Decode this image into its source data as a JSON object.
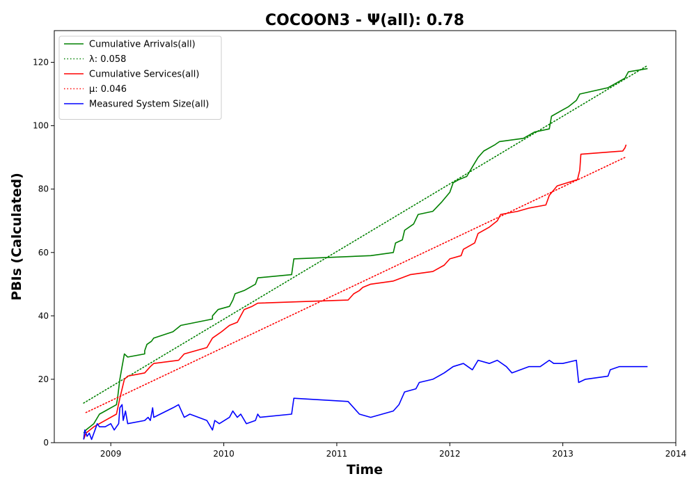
{
  "chart_data": {
    "type": "line",
    "title": "COCOON3 -  Ψ(all): 0.78",
    "xlabel": "Time",
    "ylabel": "PBIs (Calculated)",
    "xlim": [
      2008.5,
      2014.0
    ],
    "ylim": [
      0,
      130
    ],
    "x_ticks": [
      2009,
      2010,
      2011,
      2012,
      2013,
      2014
    ],
    "y_ticks": [
      0,
      20,
      40,
      60,
      80,
      100,
      120
    ],
    "legend_position": "top-left",
    "grid": false,
    "series": [
      {
        "name": "Cumulative Arrivals(all)",
        "color": "#008000",
        "style": "solid",
        "points": [
          [
            2008.76,
            3
          ],
          [
            2008.78,
            4
          ],
          [
            2008.85,
            6
          ],
          [
            2008.9,
            9
          ],
          [
            2008.95,
            10
          ],
          [
            2009.0,
            11
          ],
          [
            2009.05,
            12
          ],
          [
            2009.06,
            14
          ],
          [
            2009.08,
            20
          ],
          [
            2009.1,
            24
          ],
          [
            2009.12,
            28
          ],
          [
            2009.15,
            27
          ],
          [
            2009.3,
            28
          ],
          [
            2009.3,
            29
          ],
          [
            2009.32,
            31
          ],
          [
            2009.36,
            32
          ],
          [
            2009.38,
            33
          ],
          [
            2009.55,
            35
          ],
          [
            2009.62,
            37
          ],
          [
            2009.9,
            39
          ],
          [
            2009.9,
            40
          ],
          [
            2009.95,
            42
          ],
          [
            2010.05,
            43
          ],
          [
            2010.08,
            45
          ],
          [
            2010.1,
            47
          ],
          [
            2010.18,
            48
          ],
          [
            2010.23,
            49
          ],
          [
            2010.28,
            50
          ],
          [
            2010.3,
            52
          ],
          [
            2010.6,
            53
          ],
          [
            2010.62,
            58
          ],
          [
            2011.3,
            59
          ],
          [
            2011.5,
            60
          ],
          [
            2011.52,
            63
          ],
          [
            2011.58,
            64
          ],
          [
            2011.6,
            67
          ],
          [
            2011.68,
            69
          ],
          [
            2011.72,
            72
          ],
          [
            2011.85,
            73
          ],
          [
            2011.93,
            76
          ],
          [
            2012.0,
            79
          ],
          [
            2012.03,
            82
          ],
          [
            2012.08,
            83
          ],
          [
            2012.15,
            84
          ],
          [
            2012.2,
            87
          ],
          [
            2012.25,
            90
          ],
          [
            2012.3,
            92
          ],
          [
            2012.4,
            94
          ],
          [
            2012.44,
            95
          ],
          [
            2012.65,
            96
          ],
          [
            2012.7,
            97
          ],
          [
            2012.75,
            98
          ],
          [
            2012.88,
            99
          ],
          [
            2012.9,
            103
          ],
          [
            2013.0,
            105
          ],
          [
            2013.05,
            106
          ],
          [
            2013.12,
            108
          ],
          [
            2013.15,
            110
          ],
          [
            2013.4,
            112
          ],
          [
            2013.45,
            113
          ],
          [
            2013.55,
            115
          ],
          [
            2013.58,
            117
          ],
          [
            2013.75,
            118
          ]
        ]
      },
      {
        "name": "λ: 0.058",
        "color": "#008000",
        "style": "dotted",
        "points": [
          [
            2008.76,
            12.5
          ],
          [
            2013.75,
            119
          ]
        ]
      },
      {
        "name": "Cumulative Services(all)",
        "color": "#ff0000",
        "style": "solid",
        "points": [
          [
            2008.76,
            1
          ],
          [
            2008.78,
            3
          ],
          [
            2008.85,
            5
          ],
          [
            2008.95,
            7
          ],
          [
            2009.05,
            9
          ],
          [
            2009.08,
            14
          ],
          [
            2009.12,
            20
          ],
          [
            2009.15,
            21
          ],
          [
            2009.3,
            22
          ],
          [
            2009.35,
            24
          ],
          [
            2009.38,
            25
          ],
          [
            2009.6,
            26
          ],
          [
            2009.65,
            28
          ],
          [
            2009.85,
            30
          ],
          [
            2009.9,
            33
          ],
          [
            2009.98,
            35
          ],
          [
            2010.05,
            37
          ],
          [
            2010.12,
            38
          ],
          [
            2010.15,
            40
          ],
          [
            2010.18,
            42
          ],
          [
            2010.25,
            43
          ],
          [
            2010.3,
            44
          ],
          [
            2011.1,
            45
          ],
          [
            2011.15,
            47
          ],
          [
            2011.2,
            48
          ],
          [
            2011.23,
            49
          ],
          [
            2011.3,
            50
          ],
          [
            2011.5,
            51
          ],
          [
            2011.65,
            53
          ],
          [
            2011.85,
            54
          ],
          [
            2011.95,
            56
          ],
          [
            2012.0,
            58
          ],
          [
            2012.1,
            59
          ],
          [
            2012.12,
            61
          ],
          [
            2012.22,
            63
          ],
          [
            2012.25,
            66
          ],
          [
            2012.35,
            68
          ],
          [
            2012.42,
            70
          ],
          [
            2012.45,
            72
          ],
          [
            2012.6,
            73
          ],
          [
            2012.7,
            74
          ],
          [
            2012.85,
            75
          ],
          [
            2012.88,
            78
          ],
          [
            2012.95,
            81
          ],
          [
            2013.13,
            83
          ],
          [
            2013.15,
            86
          ],
          [
            2013.16,
            91
          ],
          [
            2013.53,
            92
          ],
          [
            2013.55,
            93
          ],
          [
            2013.56,
            94
          ]
        ]
      },
      {
        "name": "μ: 0.046",
        "color": "#ff0000",
        "style": "dotted",
        "points": [
          [
            2008.78,
            9.5
          ],
          [
            2013.55,
            90
          ]
        ]
      },
      {
        "name": "Measured System Size(all)",
        "color": "#0000ff",
        "style": "solid",
        "points": [
          [
            2008.76,
            1
          ],
          [
            2008.77,
            4
          ],
          [
            2008.79,
            2
          ],
          [
            2008.81,
            3
          ],
          [
            2008.83,
            1
          ],
          [
            2008.86,
            4
          ],
          [
            2008.88,
            6
          ],
          [
            2008.9,
            5
          ],
          [
            2008.95,
            5
          ],
          [
            2009.0,
            6
          ],
          [
            2009.03,
            4
          ],
          [
            2009.07,
            6
          ],
          [
            2009.08,
            11
          ],
          [
            2009.1,
            12
          ],
          [
            2009.11,
            7
          ],
          [
            2009.13,
            10
          ],
          [
            2009.15,
            6
          ],
          [
            2009.3,
            7
          ],
          [
            2009.33,
            8
          ],
          [
            2009.35,
            7
          ],
          [
            2009.37,
            11
          ],
          [
            2009.38,
            8
          ],
          [
            2009.55,
            11
          ],
          [
            2009.6,
            12
          ],
          [
            2009.65,
            8
          ],
          [
            2009.7,
            9
          ],
          [
            2009.85,
            7
          ],
          [
            2009.9,
            4
          ],
          [
            2009.92,
            7
          ],
          [
            2009.96,
            6
          ],
          [
            2010.05,
            8
          ],
          [
            2010.08,
            10
          ],
          [
            2010.12,
            8
          ],
          [
            2010.15,
            9
          ],
          [
            2010.2,
            6
          ],
          [
            2010.28,
            7
          ],
          [
            2010.3,
            9
          ],
          [
            2010.32,
            8
          ],
          [
            2010.6,
            9
          ],
          [
            2010.62,
            14
          ],
          [
            2011.1,
            13
          ],
          [
            2011.2,
            9
          ],
          [
            2011.3,
            8
          ],
          [
            2011.5,
            10
          ],
          [
            2011.55,
            12
          ],
          [
            2011.6,
            16
          ],
          [
            2011.7,
            17
          ],
          [
            2011.73,
            19
          ],
          [
            2011.85,
            20
          ],
          [
            2011.95,
            22
          ],
          [
            2012.03,
            24
          ],
          [
            2012.12,
            25
          ],
          [
            2012.2,
            23
          ],
          [
            2012.25,
            26
          ],
          [
            2012.35,
            25
          ],
          [
            2012.42,
            26
          ],
          [
            2012.5,
            24
          ],
          [
            2012.55,
            22
          ],
          [
            2012.7,
            24
          ],
          [
            2012.8,
            24
          ],
          [
            2012.88,
            26
          ],
          [
            2012.92,
            25
          ],
          [
            2013.0,
            25
          ],
          [
            2013.12,
            26
          ],
          [
            2013.14,
            19
          ],
          [
            2013.2,
            20
          ],
          [
            2013.4,
            21
          ],
          [
            2013.42,
            23
          ],
          [
            2013.5,
            24
          ],
          [
            2013.75,
            24
          ]
        ]
      }
    ]
  }
}
